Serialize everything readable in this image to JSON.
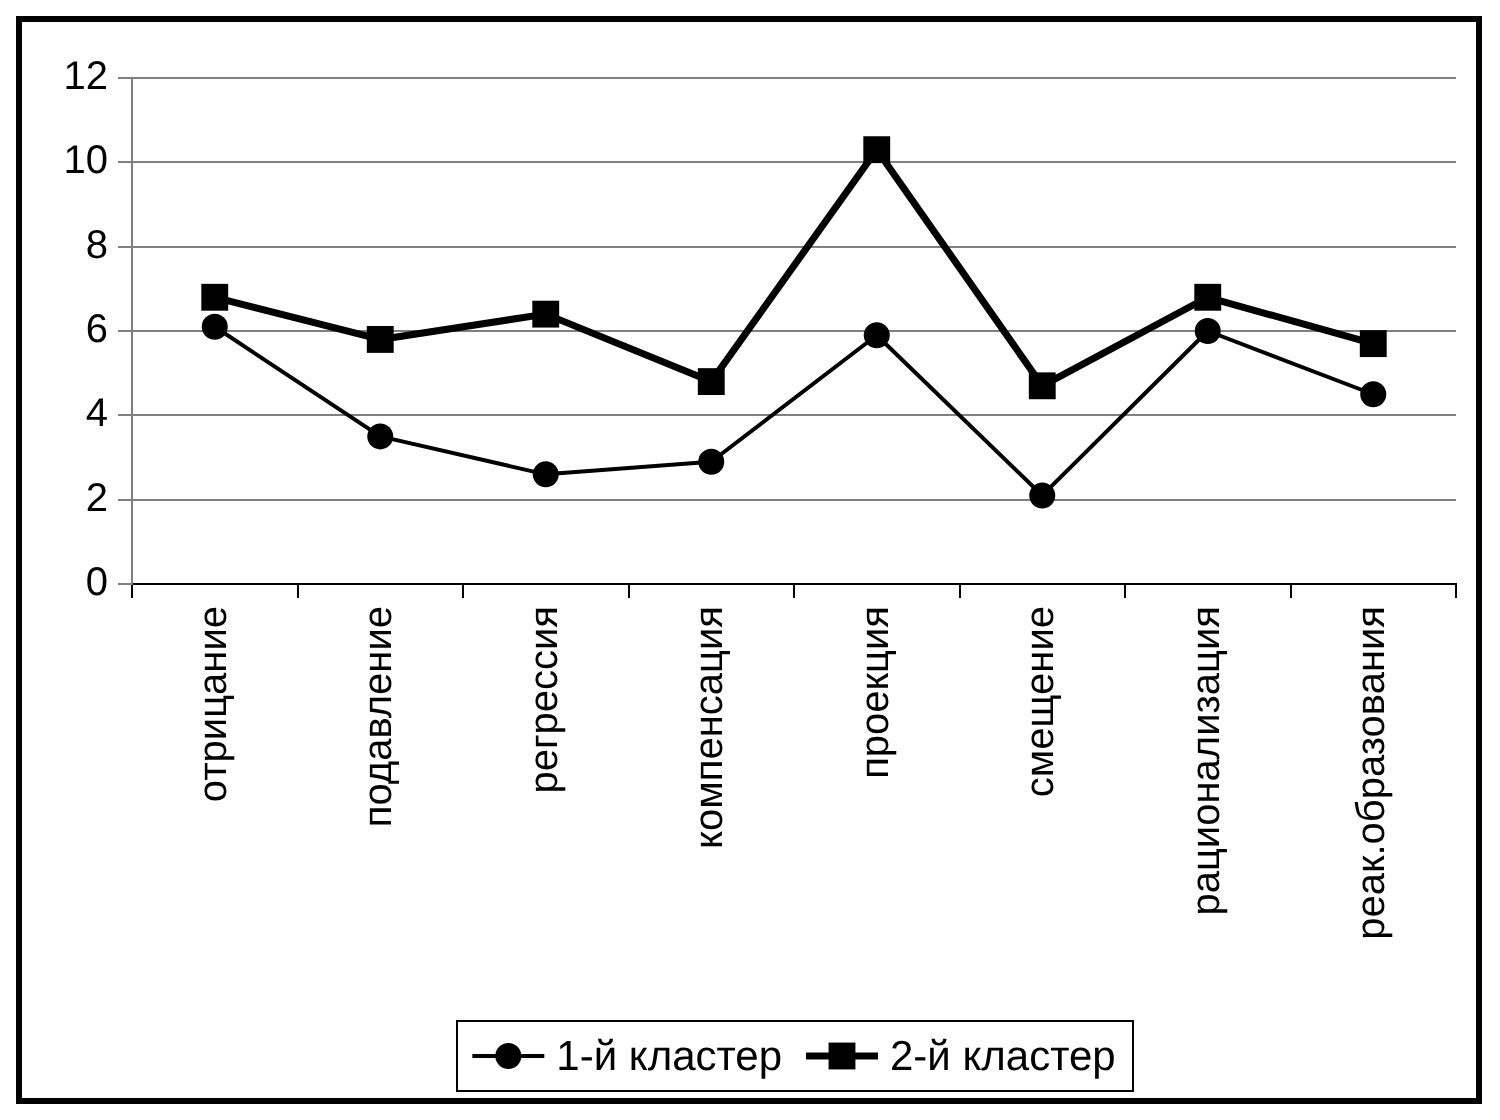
{
  "chart_data": {
    "type": "line",
    "categories": [
      "отрицание",
      "подавление",
      "регрессия",
      "компенсация",
      "проекция",
      "смещение",
      "рационализация",
      "реак.образования"
    ],
    "series": [
      {
        "name": "1-й кластер",
        "color": "#000000",
        "marker": "circle",
        "values": [
          6.1,
          3.5,
          2.6,
          2.9,
          5.9,
          2.1,
          6.0,
          4.5
        ]
      },
      {
        "name": "2-й кластер",
        "color": "#000000",
        "marker": "square",
        "values": [
          6.8,
          5.8,
          6.4,
          4.8,
          10.3,
          4.7,
          6.8,
          5.7
        ]
      }
    ],
    "ylim": [
      0,
      12
    ],
    "yticks": [
      0,
      2,
      4,
      6,
      8,
      10,
      12
    ],
    "grid": "y",
    "legend": "bottom"
  }
}
